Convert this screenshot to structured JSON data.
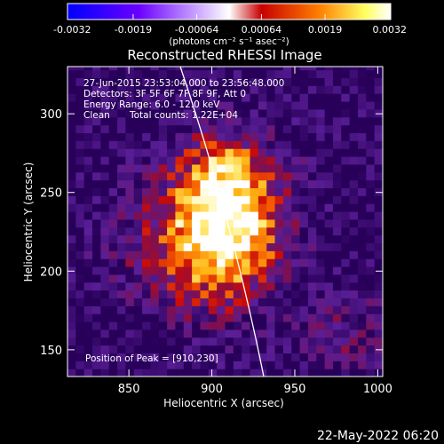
{
  "chart_data": {
    "type": "heatmap",
    "title": "Reconstructed RHESSI Image",
    "xlabel": "Heliocentric X (arcsec)",
    "ylabel": "Heliocentric Y (arcsec)",
    "xlim": [
      813,
      1003
    ],
    "ylim": [
      133,
      330
    ],
    "x_ticks": [
      850,
      900,
      950,
      1000
    ],
    "y_ticks": [
      150,
      200,
      250,
      300
    ],
    "colorbar": {
      "ticks": [
        "-0.0032",
        "-0.0019",
        "-0.00064",
        "0.00064",
        "0.0019",
        "0.0032"
      ],
      "tick_values": [
        -0.0032,
        -0.0019,
        -0.00064,
        0.00064,
        0.0019,
        0.0032
      ],
      "range": [
        -0.0032,
        0.0032
      ],
      "unit_label": "(photons cm⁻² s⁻¹ asec⁻²)"
    },
    "annotations": [
      "27-Jun-2015 23:53:04.000 to 23:56:48.000",
      "Detectors: 3F 5F 6F 7F 8F 9F, Att 0",
      "Energy Range: 6.0 - 12.0 keV",
      "Clean",
      "Total counts: 1.22E+04",
      "Position of Peak = [910,230]"
    ],
    "peak": [
      910,
      230
    ],
    "footer_timestamp": "22-May-2022 06:20"
  },
  "colors": {
    "background": "#000000",
    "colormap": [
      "#0000ff",
      "#6a00ff",
      "#ffffff",
      "#c80000",
      "#ff8000",
      "#ffff60",
      "#ffffff"
    ]
  }
}
